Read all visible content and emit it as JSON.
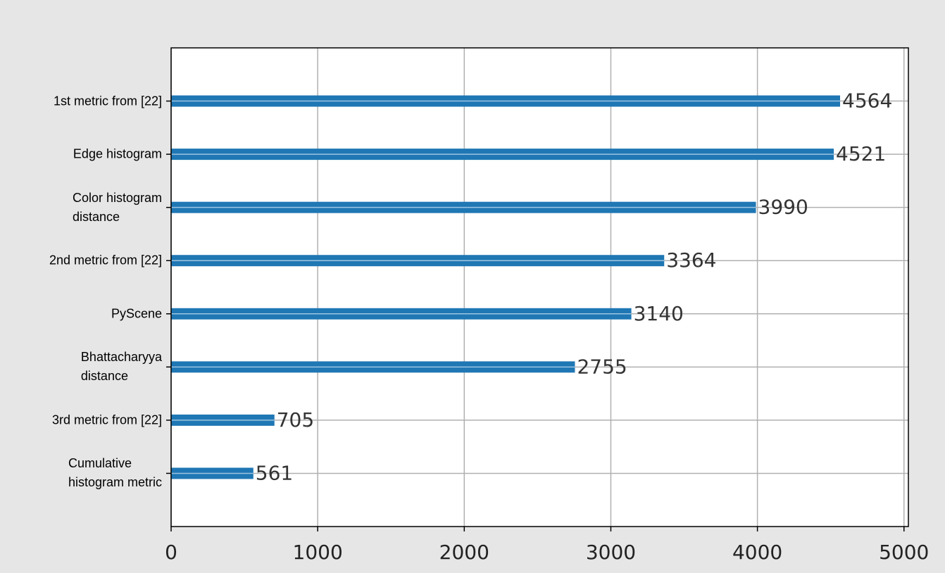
{
  "chart_data": {
    "type": "barh",
    "categories": [
      "1st metric from [22]",
      "Edge histogram",
      "Color histogram\ndistance",
      "2nd metric from [22]",
      "PyScene",
      "Bhattacharyya\ndistance",
      "3rd metric from [22]",
      "Cumulative\nhistogram metric"
    ],
    "values": [
      4564,
      4521,
      3990,
      3364,
      3140,
      2755,
      705,
      561
    ],
    "color": "#1f77b4",
    "xlim": [
      0,
      5030
    ],
    "xticks": [
      0,
      1000,
      2000,
      3000,
      4000,
      5000
    ],
    "grid": true
  }
}
